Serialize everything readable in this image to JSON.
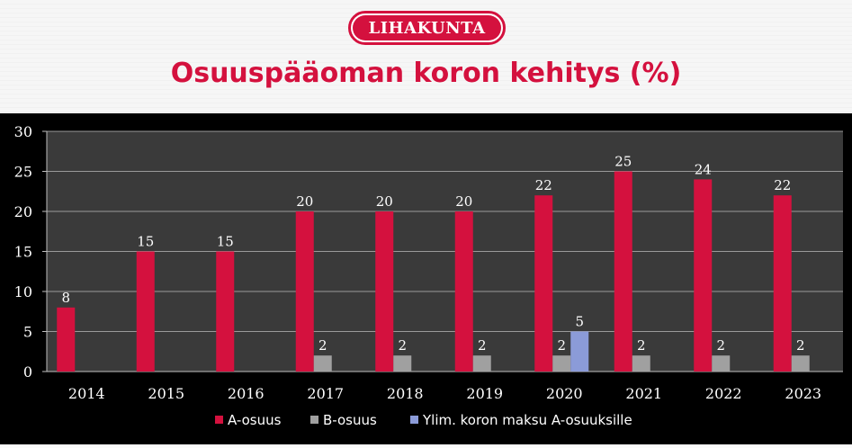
{
  "logo_text": "LIHAKUNTA",
  "title": "Osuuspääoman koron kehitys (%)",
  "colors": {
    "brand": "#d4113e",
    "a": "#d4113e",
    "b": "#a0a0a0",
    "ylim": "#8b9bd8",
    "background": "#000000"
  },
  "chart_data": {
    "type": "bar",
    "title": "Osuuspääoman koron kehitys (%)",
    "categories": [
      "2014",
      "2015",
      "2016",
      "2017",
      "2018",
      "2019",
      "2020",
      "2021",
      "2022",
      "2023"
    ],
    "series": [
      {
        "name": "A-osuus",
        "values": [
          8,
          15,
          15,
          20,
          20,
          20,
          22,
          25,
          24,
          22
        ]
      },
      {
        "name": "B-osuus",
        "values": [
          null,
          null,
          null,
          2,
          2,
          2,
          2,
          2,
          2,
          2
        ]
      },
      {
        "name": "Ylim. koron maksu A-osuuksille",
        "values": [
          null,
          null,
          null,
          null,
          null,
          null,
          5,
          null,
          null,
          null
        ]
      }
    ],
    "yticks": [
      "0",
      "5",
      "10",
      "15",
      "20",
      "25",
      "30"
    ],
    "ylim": [
      0,
      30
    ],
    "grid": true,
    "legend_position": "bottom"
  }
}
